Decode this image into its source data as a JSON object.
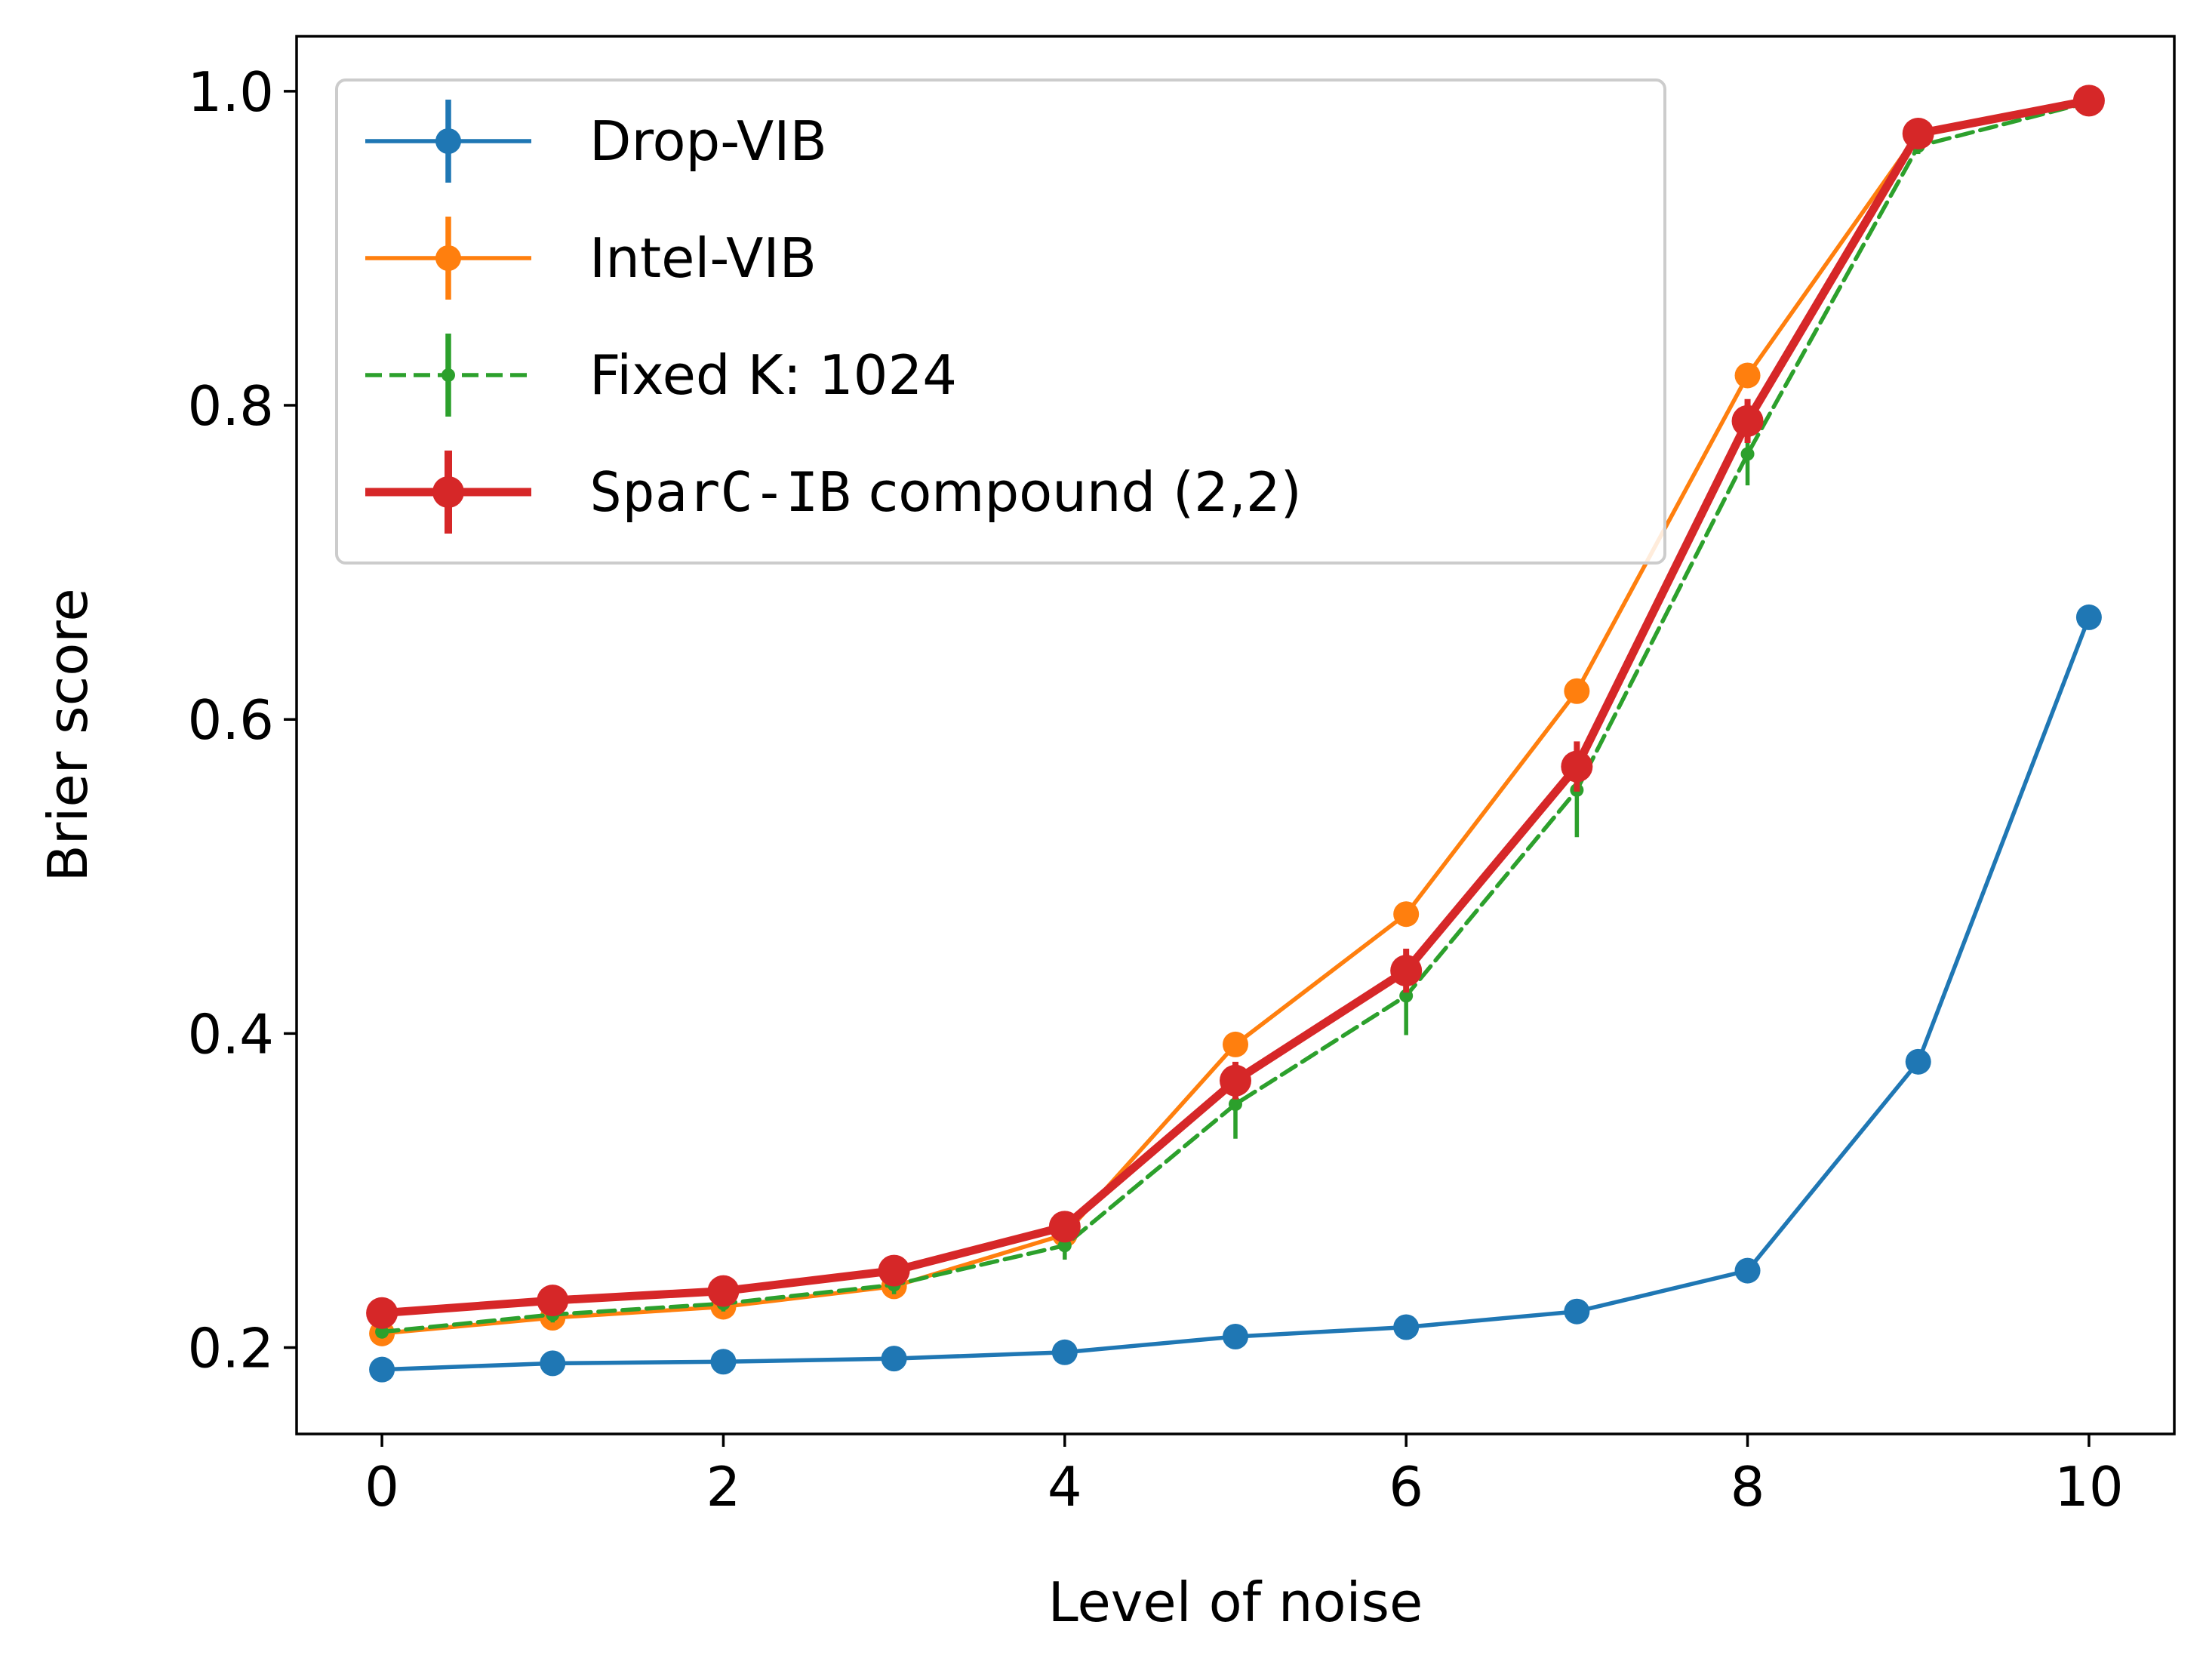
{
  "chart_data": {
    "type": "line",
    "title": "",
    "xlabel": "Level of noise",
    "ylabel": "Brier score",
    "xlim": [
      -0.5,
      10.5
    ],
    "ylim": [
      0.145,
      1.035
    ],
    "xticks": [
      0,
      2,
      4,
      6,
      8,
      10
    ],
    "xtick_labels": [
      "0",
      "2",
      "4",
      "6",
      "8",
      "10"
    ],
    "yticks": [
      0.2,
      0.4,
      0.6,
      0.8,
      1.0
    ],
    "ytick_labels": [
      "0.2",
      "0.4",
      "0.6",
      "0.8",
      "1.0"
    ],
    "grid": false,
    "legend_position": "top-left",
    "x": [
      0,
      1,
      2,
      3,
      4,
      5,
      6,
      7,
      8,
      9,
      10
    ],
    "series": [
      {
        "name": "Drop-VIB",
        "color": "#1f77b4",
        "style": "solid-marker",
        "values": [
          0.186,
          0.19,
          0.191,
          0.193,
          0.197,
          0.207,
          0.213,
          0.223,
          0.249,
          0.382,
          0.665
        ],
        "errors": [
          0.003,
          0.003,
          0.003,
          0.003,
          0.003,
          0.003,
          0.003,
          0.003,
          0.003,
          0.003,
          0.003
        ]
      },
      {
        "name": "Intel-VIB",
        "color": "#ff7f0e",
        "style": "solid-marker",
        "values": [
          0.209,
          0.219,
          0.226,
          0.239,
          0.272,
          0.393,
          0.476,
          0.618,
          0.819,
          0.973,
          0.993
        ],
        "errors": [
          0.003,
          0.003,
          0.003,
          0.004,
          0.004,
          0.005,
          0.005,
          0.005,
          0.004,
          0.002,
          0.001
        ]
      },
      {
        "name": "Fixed K: 1024",
        "color": "#2ca02c",
        "style": "dashed-small-marker",
        "values": [
          0.21,
          0.221,
          0.228,
          0.24,
          0.265,
          0.355,
          0.424,
          0.555,
          0.769,
          0.965,
          0.993
        ],
        "errors": [
          0.004,
          0.005,
          0.005,
          0.006,
          0.009,
          0.022,
          0.025,
          0.03,
          0.02,
          0.005,
          0.002
        ]
      },
      {
        "name_mono": "SparC-IB",
        "name_rest": " compound (2,2)",
        "color": "#d62728",
        "style": "thick-marker",
        "values": [
          0.222,
          0.23,
          0.236,
          0.249,
          0.277,
          0.37,
          0.44,
          0.57,
          0.79,
          0.973,
          0.994
        ],
        "errors": [
          0.004,
          0.005,
          0.005,
          0.006,
          0.008,
          0.012,
          0.014,
          0.016,
          0.014,
          0.004,
          0.002
        ]
      }
    ]
  }
}
